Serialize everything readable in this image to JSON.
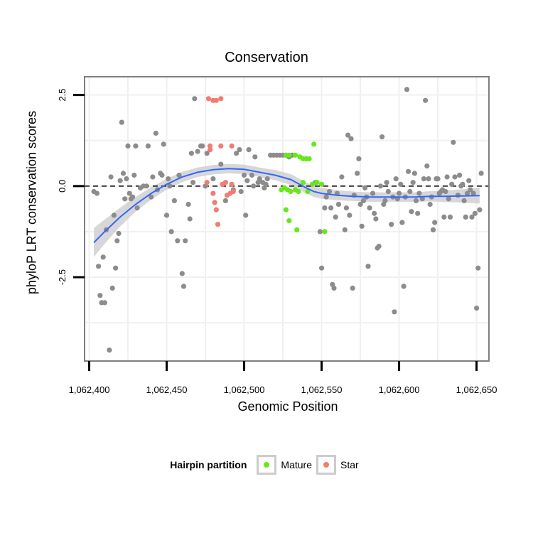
{
  "chart_data": {
    "type": "scatter",
    "title": "Conservation",
    "xlabel": "Genomic Position",
    "ylabel": "phyloP LRT conservation scores",
    "xlim": [
      1062397,
      1062658
    ],
    "ylim": [
      -4.8,
      3.0
    ],
    "x_ticks": [
      1062400,
      1062450,
      1062500,
      1062550,
      1062600,
      1062650
    ],
    "x_tick_labels": [
      "1,062,400",
      "1,062,450",
      "1,062,500",
      "1,062,550",
      "1,062,600",
      "1,062,650"
    ],
    "y_ticks": [
      2.5,
      0.0,
      -2.5
    ],
    "y_tick_labels": [
      "2.5",
      "0.0",
      "-2.5"
    ],
    "reference_line": {
      "y": 0,
      "style": "dashed"
    },
    "colors": {
      "background": "#ffffff",
      "grid": "#f0f0f0",
      "border": "#7f7f7f",
      "other": "#8c8c8c",
      "mature": "#66e81a",
      "star": "#f17c70",
      "smooth": "#3366ff",
      "ribbon": "#d0d0d0"
    },
    "legend": {
      "title": "Hairpin partition",
      "position": "bottom",
      "entries": [
        "Mature",
        "Star"
      ]
    },
    "smooth": {
      "x": [
        1062403,
        1062410,
        1062420,
        1062430,
        1062440,
        1062450,
        1062460,
        1062470,
        1062480,
        1062490,
        1062500,
        1062510,
        1062520,
        1062530,
        1062540,
        1062545,
        1062550,
        1062560,
        1062570,
        1062580,
        1062590,
        1062600,
        1062610,
        1062620,
        1062630,
        1062640,
        1062652
      ],
      "y": [
        -1.55,
        -1.25,
        -0.85,
        -0.5,
        -0.2,
        0.05,
        0.25,
        0.38,
        0.45,
        0.48,
        0.46,
        0.38,
        0.3,
        0.18,
        -0.05,
        -0.15,
        -0.2,
        -0.25,
        -0.28,
        -0.3,
        -0.3,
        -0.3,
        -0.3,
        -0.28,
        -0.28,
        -0.27,
        -0.26
      ],
      "se": [
        0.4,
        0.33,
        0.26,
        0.2,
        0.17,
        0.15,
        0.14,
        0.13,
        0.13,
        0.13,
        0.13,
        0.13,
        0.14,
        0.15,
        0.15,
        0.15,
        0.15,
        0.14,
        0.13,
        0.13,
        0.13,
        0.13,
        0.13,
        0.14,
        0.16,
        0.18,
        0.22
      ]
    },
    "series": [
      {
        "name": "Other",
        "group": "other",
        "points": [
          [
            1062403,
            -0.15
          ],
          [
            1062405,
            -0.2
          ],
          [
            1062406,
            -2.2
          ],
          [
            1062407,
            -3.0
          ],
          [
            1062408,
            -3.2
          ],
          [
            1062409,
            -1.95
          ],
          [
            1062410,
            -3.2
          ],
          [
            1062411,
            -1.2
          ],
          [
            1062413,
            -4.5
          ],
          [
            1062414,
            0.25
          ],
          [
            1062415,
            -2.8
          ],
          [
            1062416,
            -0.8
          ],
          [
            1062417,
            -2.25
          ],
          [
            1062418,
            -1.5
          ],
          [
            1062419,
            -1.3
          ],
          [
            1062420,
            0.15
          ],
          [
            1062421,
            1.75
          ],
          [
            1062422,
            0.35
          ],
          [
            1062423,
            -0.35
          ],
          [
            1062424,
            0.2
          ],
          [
            1062425,
            1.1
          ],
          [
            1062426,
            -0.2
          ],
          [
            1062427,
            -0.35
          ],
          [
            1062428,
            -0.3
          ],
          [
            1062429,
            0.3
          ],
          [
            1062430,
            1.1
          ],
          [
            1062431,
            -0.6
          ],
          [
            1062433,
            -0.05
          ],
          [
            1062435,
            0.0
          ],
          [
            1062437,
            0.0
          ],
          [
            1062438,
            1.1
          ],
          [
            1062440,
            -0.3
          ],
          [
            1062441,
            0.25
          ],
          [
            1062443,
            1.45
          ],
          [
            1062444,
            -0.1
          ],
          [
            1062446,
            0.35
          ],
          [
            1062447,
            0.3
          ],
          [
            1062448,
            1.15
          ],
          [
            1062450,
            -0.8
          ],
          [
            1062451,
            0.2
          ],
          [
            1062452,
            0.0
          ],
          [
            1062453,
            -1.25
          ],
          [
            1062455,
            -0.4
          ],
          [
            1062457,
            -1.5
          ],
          [
            1062458,
            0.3
          ],
          [
            1062460,
            -2.4
          ],
          [
            1062461,
            -2.75
          ],
          [
            1062462,
            -1.5
          ],
          [
            1062464,
            -0.5
          ],
          [
            1062465,
            -0.9
          ],
          [
            1062466,
            0.9
          ],
          [
            1062467,
            0.1
          ],
          [
            1062468,
            2.4
          ],
          [
            1062470,
            0.95
          ],
          [
            1062472,
            1.1
          ],
          [
            1062473,
            1.1
          ],
          [
            1062475,
            0.0
          ],
          [
            1062476,
            0.9
          ],
          [
            1062480,
            0.2
          ],
          [
            1062485,
            0.6
          ],
          [
            1062488,
            -0.4
          ],
          [
            1062493,
            -0.1
          ],
          [
            1062495,
            0.9
          ],
          [
            1062497,
            1.0
          ],
          [
            1062498,
            -0.15
          ],
          [
            1062500,
            0.3
          ],
          [
            1062501,
            -0.8
          ],
          [
            1062502,
            0.15
          ],
          [
            1062503,
            1.0
          ],
          [
            1062505,
            0.3
          ],
          [
            1062506,
            0.0
          ],
          [
            1062507,
            0.8
          ],
          [
            1062509,
            0.1
          ],
          [
            1062510,
            0.2
          ],
          [
            1062512,
            0.1
          ],
          [
            1062513,
            -0.05
          ],
          [
            1062514,
            0.05
          ],
          [
            1062515,
            0.2
          ],
          [
            1062517,
            0.85
          ],
          [
            1062519,
            0.85
          ],
          [
            1062521,
            0.85
          ],
          [
            1062523,
            0.85
          ],
          [
            1062525,
            0.85
          ],
          [
            1062527,
            0.85
          ],
          [
            1062529,
            0.8
          ],
          [
            1062531,
            0.85
          ],
          [
            1062546,
            0.1
          ],
          [
            1062549,
            -1.25
          ],
          [
            1062550,
            -2.25
          ],
          [
            1062552,
            -0.6
          ],
          [
            1062553,
            -0.3
          ],
          [
            1062555,
            -0.15
          ],
          [
            1062556,
            -0.6
          ],
          [
            1062557,
            -2.7
          ],
          [
            1062558,
            -2.8
          ],
          [
            1062559,
            -0.85
          ],
          [
            1062560,
            -0.2
          ],
          [
            1062561,
            -0.5
          ],
          [
            1062563,
            0.25
          ],
          [
            1062565,
            -1.2
          ],
          [
            1062566,
            -0.6
          ],
          [
            1062567,
            1.4
          ],
          [
            1062568,
            -0.8
          ],
          [
            1062569,
            1.3
          ],
          [
            1062570,
            -2.8
          ],
          [
            1062571,
            -0.25
          ],
          [
            1062573,
            0.35
          ],
          [
            1062574,
            0.75
          ],
          [
            1062575,
            -0.5
          ],
          [
            1062576,
            -1.1
          ],
          [
            1062577,
            -0.4
          ],
          [
            1062578,
            -0.05
          ],
          [
            1062579,
            -0.3
          ],
          [
            1062580,
            -2.2
          ],
          [
            1062581,
            -0.6
          ],
          [
            1062583,
            -0.2
          ],
          [
            1062584,
            -0.75
          ],
          [
            1062585,
            -0.9
          ],
          [
            1062586,
            -1.7
          ],
          [
            1062587,
            -1.65
          ],
          [
            1062588,
            0.0
          ],
          [
            1062589,
            1.35
          ],
          [
            1062590,
            -0.5
          ],
          [
            1062591,
            -0.4
          ],
          [
            1062592,
            0.1
          ],
          [
            1062593,
            -0.15
          ],
          [
            1062595,
            -1.05
          ],
          [
            1062596,
            -0.3
          ],
          [
            1062597,
            -3.45
          ],
          [
            1062598,
            0.2
          ],
          [
            1062599,
            -0.35
          ],
          [
            1062600,
            -0.2
          ],
          [
            1062601,
            0.05
          ],
          [
            1062602,
            -1.0
          ],
          [
            1062603,
            -2.75
          ],
          [
            1062604,
            -0.3
          ],
          [
            1062605,
            2.65
          ],
          [
            1062606,
            0.4
          ],
          [
            1062607,
            -0.15
          ],
          [
            1062608,
            -0.7
          ],
          [
            1062609,
            0.1
          ],
          [
            1062610,
            0.35
          ],
          [
            1062611,
            -0.4
          ],
          [
            1062612,
            -0.75
          ],
          [
            1062613,
            -0.2
          ],
          [
            1062615,
            -0.35
          ],
          [
            1062616,
            0.2
          ],
          [
            1062617,
            2.35
          ],
          [
            1062618,
            0.55
          ],
          [
            1062619,
            0.2
          ],
          [
            1062620,
            -0.5
          ],
          [
            1062621,
            -0.3
          ],
          [
            1062622,
            -1.2
          ],
          [
            1062623,
            -1.0
          ],
          [
            1062624,
            0.2
          ],
          [
            1062625,
            0.2
          ],
          [
            1062626,
            -0.2
          ],
          [
            1062627,
            -0.15
          ],
          [
            1062628,
            -0.1
          ],
          [
            1062629,
            -0.85
          ],
          [
            1062630,
            -0.15
          ],
          [
            1062631,
            0.25
          ],
          [
            1062632,
            -0.35
          ],
          [
            1062633,
            -0.85
          ],
          [
            1062634,
            0.05
          ],
          [
            1062635,
            1.2
          ],
          [
            1062636,
            0.25
          ],
          [
            1062638,
            -0.25
          ],
          [
            1062639,
            0.3
          ],
          [
            1062640,
            0.0
          ],
          [
            1062641,
            0.05
          ],
          [
            1062642,
            -0.4
          ],
          [
            1062643,
            -0.85
          ],
          [
            1062644,
            -0.2
          ],
          [
            1062645,
            0.15
          ],
          [
            1062646,
            -0.1
          ],
          [
            1062647,
            -0.85
          ],
          [
            1062648,
            -0.2
          ],
          [
            1062649,
            -0.75
          ],
          [
            1062650,
            -3.35
          ],
          [
            1062651,
            -2.25
          ],
          [
            1062652,
            -0.65
          ],
          [
            1062653,
            0.35
          ]
        ]
      },
      {
        "name": "Star",
        "group": "star",
        "points": [
          [
            1062477,
            2.4
          ],
          [
            1062480,
            2.35
          ],
          [
            1062482,
            2.35
          ],
          [
            1062485,
            2.4
          ],
          [
            1062478,
            1.1
          ],
          [
            1062485,
            1.1
          ],
          [
            1062492,
            1.1
          ],
          [
            1062476,
            0.1
          ],
          [
            1062480,
            -0.2
          ],
          [
            1062481,
            -0.45
          ],
          [
            1062482,
            -0.65
          ],
          [
            1062483,
            -1.05
          ],
          [
            1062486,
            0.05
          ],
          [
            1062488,
            0.1
          ],
          [
            1062489,
            -0.25
          ],
          [
            1062491,
            -0.2
          ],
          [
            1062492,
            0.05
          ],
          [
            1062493,
            -0.15
          ],
          [
            1062478,
            1.0
          ]
        ]
      },
      {
        "name": "Mature",
        "group": "mature",
        "points": [
          [
            1062524,
            -0.1
          ],
          [
            1062526,
            -0.05
          ],
          [
            1062527,
            -0.65
          ],
          [
            1062528,
            -0.1
          ],
          [
            1062529,
            -0.95
          ],
          [
            1062530,
            -0.15
          ],
          [
            1062533,
            -0.1
          ],
          [
            1062534,
            -1.2
          ],
          [
            1062535,
            -0.15
          ],
          [
            1062538,
            0.1
          ],
          [
            1062541,
            -0.15
          ],
          [
            1062544,
            0.05
          ],
          [
            1062547,
            0.1
          ],
          [
            1062550,
            0.05
          ],
          [
            1062552,
            -1.25
          ],
          [
            1062545,
            1.15
          ],
          [
            1062533,
            0.85
          ],
          [
            1062536,
            0.8
          ],
          [
            1062538,
            0.75
          ],
          [
            1062540,
            0.75
          ],
          [
            1062542,
            0.75
          ],
          [
            1062527,
            0.85
          ],
          [
            1062529,
            0.85
          ]
        ]
      }
    ]
  }
}
